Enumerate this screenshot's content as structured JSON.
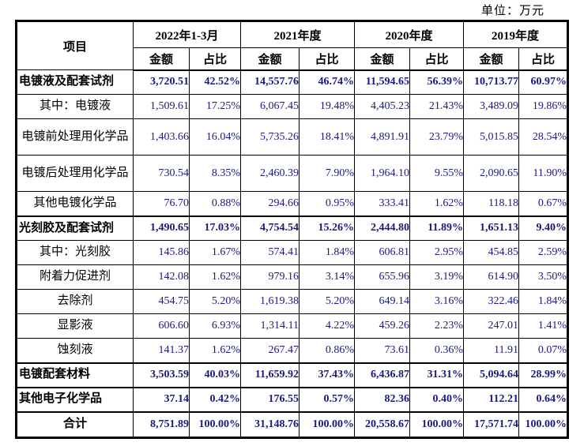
{
  "unit_label": "单位：万元",
  "table": {
    "item_header": "项目",
    "amount_header": "金额",
    "ratio_header": "占比",
    "periods": [
      "2022年1-3月",
      "2021年度",
      "2020年度",
      "2019年度"
    ],
    "rows": [
      {
        "label": "电镀液及配套试剂",
        "bold": true,
        "section": false,
        "tall": false,
        "align": "left",
        "values": [
          "3,720.51",
          "42.52%",
          "14,557.76",
          "46.74%",
          "11,594.65",
          "56.39%",
          "10,713.77",
          "60.97%"
        ]
      },
      {
        "label": "其中：电镀液",
        "bold": false,
        "section": false,
        "tall": false,
        "align": "center",
        "values": [
          "1,509.61",
          "17.25%",
          "6,067.45",
          "19.48%",
          "4,405.23",
          "21.43%",
          "3,489.09",
          "19.86%"
        ]
      },
      {
        "label": "电镀前处理用化学品",
        "bold": false,
        "section": false,
        "tall": true,
        "align": "center",
        "values": [
          "1,403.66",
          "16.04%",
          "5,735.26",
          "18.41%",
          "4,891.91",
          "23.79%",
          "5,015.85",
          "28.54%"
        ]
      },
      {
        "label": "电镀后处理用化学品",
        "bold": false,
        "section": false,
        "tall": true,
        "align": "center",
        "values": [
          "730.54",
          "8.35%",
          "2,460.39",
          "7.90%",
          "1,964.10",
          "9.55%",
          "2,090.65",
          "11.90%"
        ]
      },
      {
        "label": "其他电镀化学品",
        "bold": false,
        "section": false,
        "tall": false,
        "align": "center",
        "values": [
          "76.70",
          "0.88%",
          "294.66",
          "0.95%",
          "333.41",
          "1.62%",
          "118.18",
          "0.67%"
        ]
      },
      {
        "label": "光刻胶及配套试剂",
        "bold": true,
        "section": true,
        "tall": false,
        "align": "left",
        "values": [
          "1,490.65",
          "17.03%",
          "4,754.54",
          "15.26%",
          "2,444.80",
          "11.89%",
          "1,651.13",
          "9.40%"
        ]
      },
      {
        "label": "其中：光刻胶",
        "bold": false,
        "section": false,
        "tall": false,
        "align": "center",
        "values": [
          "145.86",
          "1.67%",
          "574.41",
          "1.84%",
          "606.81",
          "2.95%",
          "454.85",
          "2.59%"
        ]
      },
      {
        "label": "附着力促进剂",
        "bold": false,
        "section": false,
        "tall": false,
        "align": "center",
        "values": [
          "142.08",
          "1.62%",
          "979.16",
          "3.14%",
          "655.96",
          "3.19%",
          "614.90",
          "3.50%"
        ]
      },
      {
        "label": "去除剂",
        "bold": false,
        "section": false,
        "tall": false,
        "align": "center",
        "values": [
          "454.75",
          "5.20%",
          "1,619.38",
          "5.20%",
          "649.14",
          "3.16%",
          "322.46",
          "1.84%"
        ]
      },
      {
        "label": "显影液",
        "bold": false,
        "section": false,
        "tall": false,
        "align": "center",
        "values": [
          "606.60",
          "6.93%",
          "1,314.11",
          "4.22%",
          "459.26",
          "2.23%",
          "247.01",
          "1.41%"
        ]
      },
      {
        "label": "蚀刻液",
        "bold": false,
        "section": false,
        "tall": false,
        "align": "center",
        "values": [
          "141.37",
          "1.62%",
          "267.47",
          "0.86%",
          "73.61",
          "0.36%",
          "11.91",
          "0.07%"
        ]
      },
      {
        "label": "电镀配套材料",
        "bold": true,
        "section": true,
        "tall": false,
        "align": "left",
        "values": [
          "3,503.59",
          "40.03%",
          "11,659.92",
          "37.43%",
          "6,436.87",
          "31.31%",
          "5,094.64",
          "28.99%"
        ]
      },
      {
        "label": "其他电子化学品",
        "bold": true,
        "section": true,
        "tall": false,
        "align": "left",
        "values": [
          "37.14",
          "0.42%",
          "176.55",
          "0.57%",
          "82.36",
          "0.40%",
          "112.21",
          "0.64%"
        ]
      },
      {
        "label": "合计",
        "bold": true,
        "section": true,
        "tall": false,
        "align": "center",
        "last": true,
        "values": [
          "8,751.89",
          "100.00%",
          "31,148.76",
          "100.00%",
          "20,558.67",
          "100.00%",
          "17,571.74",
          "100.00%"
        ]
      }
    ]
  }
}
